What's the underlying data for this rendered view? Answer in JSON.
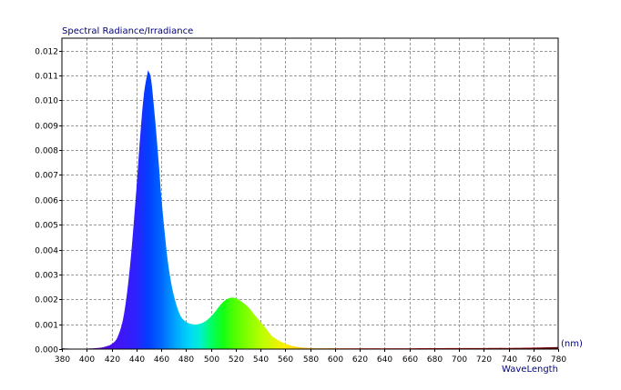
{
  "chart_data": {
    "type": "area",
    "title": "Spectral Radiance/Irradiance",
    "xlabel": "WaveLength",
    "xunit": "(nm)",
    "ylabel": "",
    "xlim": [
      380,
      780
    ],
    "ylim": [
      0,
      0.0125
    ],
    "grid": true,
    "x_ticks": [
      380,
      400,
      420,
      440,
      460,
      480,
      500,
      520,
      540,
      560,
      580,
      600,
      620,
      640,
      660,
      680,
      700,
      720,
      740,
      760,
      780
    ],
    "x_tick_labels": [
      "380",
      "400",
      "420",
      "440",
      "460",
      "480",
      "500",
      "520",
      "540",
      "560",
      "580",
      "600",
      "620",
      "640",
      "660",
      "680",
      "700",
      "720",
      "740",
      "760",
      "780"
    ],
    "y_ticks": [
      0,
      0.001,
      0.002,
      0.003,
      0.004,
      0.005,
      0.006,
      0.007,
      0.008,
      0.009,
      0.01,
      0.011,
      0.012
    ],
    "y_tick_labels": [
      "0.000",
      "0.001",
      "0.002",
      "0.003",
      "0.004",
      "0.005",
      "0.006",
      "0.007",
      "0.008",
      "0.009",
      "0.010",
      "0.011",
      "0.012"
    ],
    "series": [
      {
        "x": [
          380,
          390,
          400,
          410,
          415,
          420,
          425,
          430,
          435,
          440,
          443,
          446,
          449,
          450,
          452,
          455,
          458,
          460,
          463,
          466,
          470,
          475,
          480,
          485,
          490,
          495,
          500,
          505,
          510,
          515,
          520,
          525,
          530,
          535,
          540,
          545,
          550,
          560,
          570,
          580,
          590,
          600,
          620,
          650,
          700,
          750,
          780
        ],
        "y": [
          3e-05,
          1e-05,
          2e-05,
          5e-05,
          0.0001,
          0.0002,
          0.0005,
          0.0014,
          0.0034,
          0.0064,
          0.0085,
          0.0102,
          0.0111,
          0.01115,
          0.0108,
          0.0093,
          0.0075,
          0.0062,
          0.0046,
          0.0033,
          0.0022,
          0.0014,
          0.0011,
          0.001,
          0.001,
          0.0011,
          0.0013,
          0.0016,
          0.0019,
          0.00205,
          0.00205,
          0.0019,
          0.0017,
          0.0014,
          0.0011,
          0.0008,
          0.0005,
          0.00022,
          8e-05,
          4e-05,
          3e-05,
          3e-05,
          3e-05,
          3e-05,
          4e-05,
          5e-05,
          8e-05
        ]
      }
    ]
  }
}
